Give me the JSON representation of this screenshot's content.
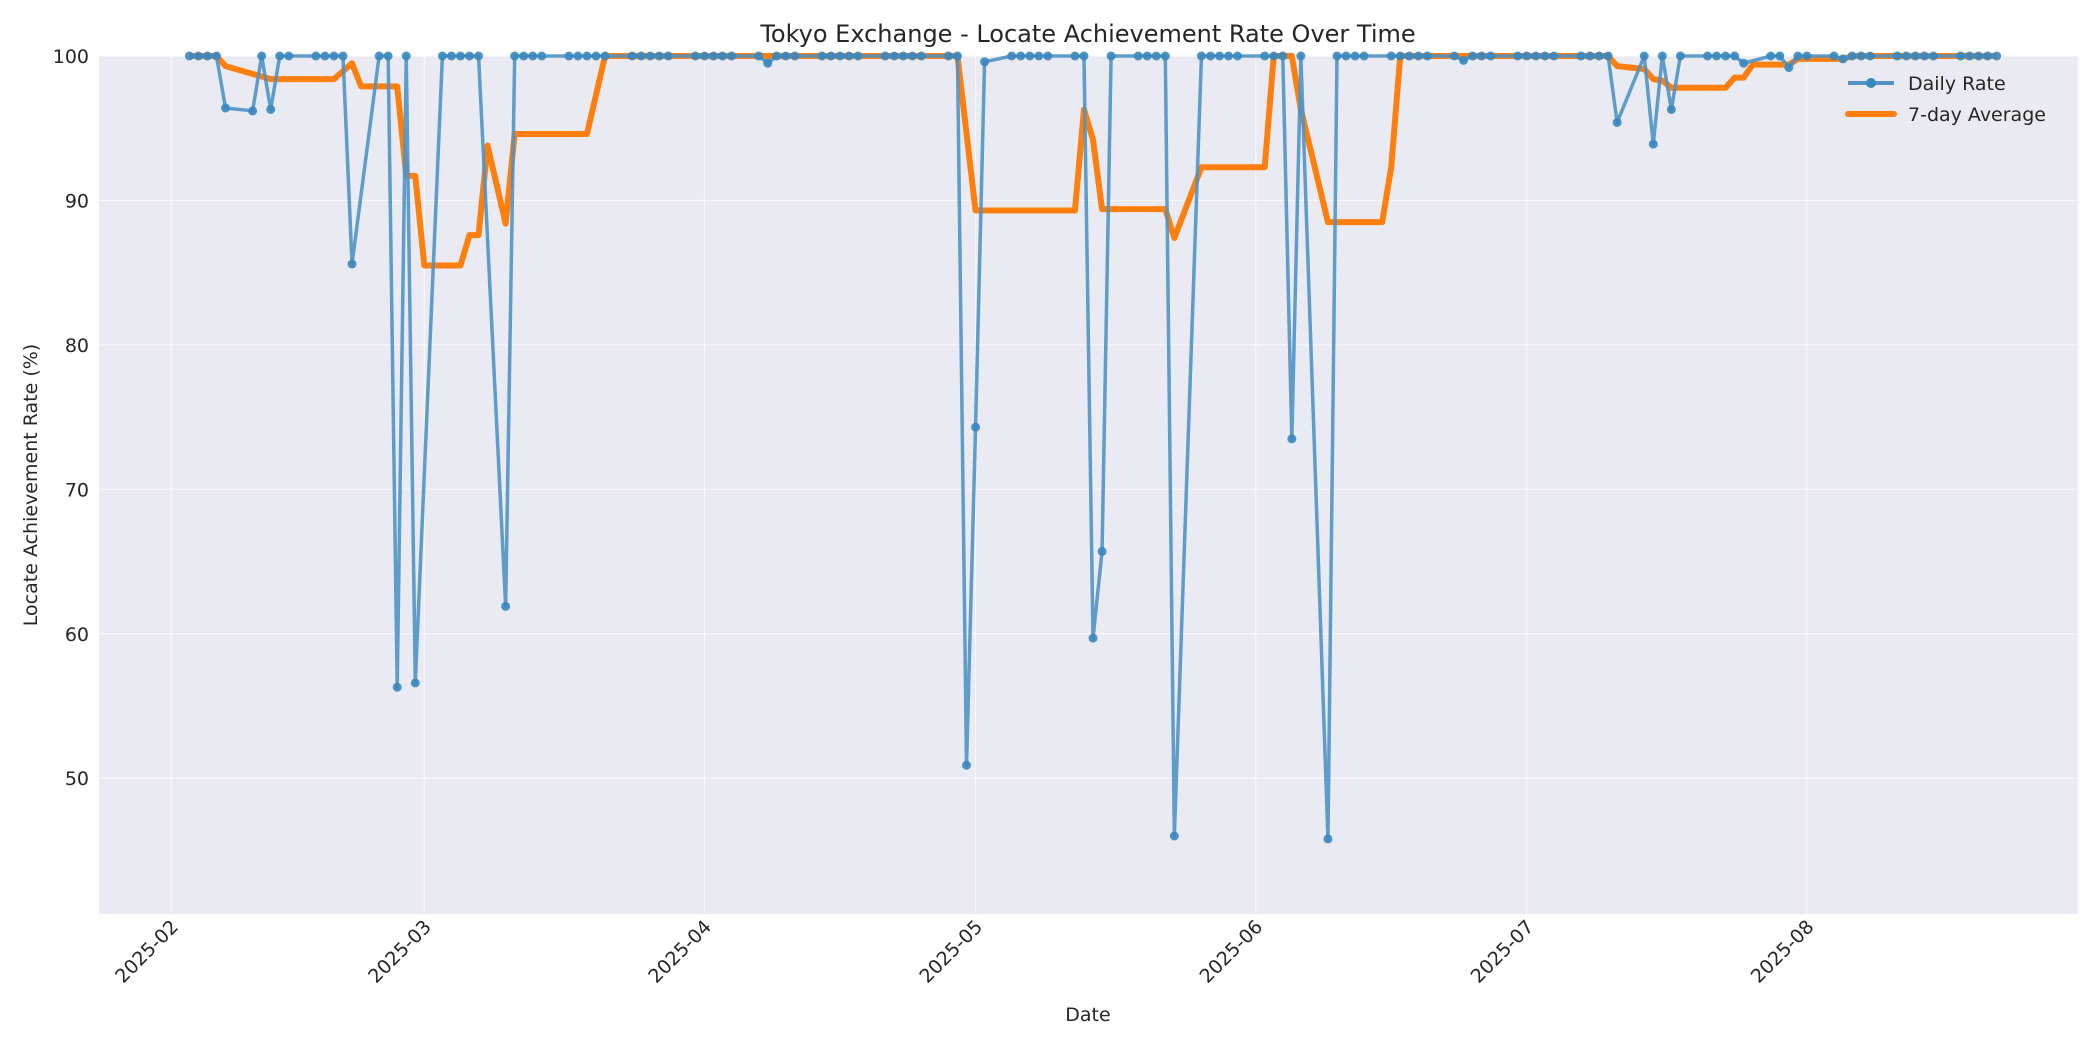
{
  "chart_data": {
    "type": "line",
    "title": "Tokyo Exchange - Locate Achievement Rate Over Time",
    "xlabel": "Date",
    "ylabel": "Locate Achievement Rate (%)",
    "xlim": [
      "2025-01-24",
      "2025-08-31"
    ],
    "ylim": [
      40.6,
      100
    ],
    "yticks": [
      50,
      60,
      70,
      80,
      90,
      100
    ],
    "xticks": [
      "2025-02",
      "2025-03",
      "2025-04",
      "2025-05",
      "2025-06",
      "2025-07",
      "2025-08"
    ],
    "xtick_dates": [
      "2025-02-01",
      "2025-03-01",
      "2025-04-01",
      "2025-05-01",
      "2025-06-01",
      "2025-07-01",
      "2025-08-01"
    ],
    "grid": true,
    "legend_position": "upper right",
    "background": "#eaeaf2",
    "daily_default_value": 100,
    "series": [
      {
        "name": "Daily Rate",
        "color": "#4f94c5",
        "marker": "circle",
        "start": "2025-02-03",
        "end": "2025-08-22",
        "frequency": "business-days",
        "exceptions": {
          "2025-02-07": 96.4,
          "2025-02-10": 96.2,
          "2025-02-12": 96.3,
          "2025-02-21": 85.6,
          "2025-02-26": 56.3,
          "2025-02-28": 56.6,
          "2025-03-10": 61.9,
          "2025-04-08": 99.5,
          "2025-04-30": 50.9,
          "2025-05-01": 74.3,
          "2025-05-02": 99.6,
          "2025-05-14": 59.7,
          "2025-05-15": 65.7,
          "2025-05-23": 46.0,
          "2025-06-05": 73.5,
          "2025-06-09": 45.8,
          "2025-06-24": 99.7,
          "2025-07-11": 95.4,
          "2025-07-15": 93.9,
          "2025-07-17": 96.3,
          "2025-07-25": 99.5,
          "2025-07-30": 99.2,
          "2025-08-05": 99.8
        }
      },
      {
        "name": "7-day Average",
        "color": "#ff7f0e",
        "points": [
          [
            "2025-02-03",
            100
          ],
          [
            "2025-02-06",
            100
          ],
          [
            "2025-02-07",
            99.3
          ],
          [
            "2025-02-12",
            98.4
          ],
          [
            "2025-02-19",
            98.4
          ],
          [
            "2025-02-21",
            99.5
          ],
          [
            "2025-02-22",
            97.9
          ],
          [
            "2025-02-26",
            97.9
          ],
          [
            "2025-02-27",
            91.7
          ],
          [
            "2025-02-28",
            91.7
          ],
          [
            "2025-03-01",
            85.5
          ],
          [
            "2025-03-05",
            85.5
          ],
          [
            "2025-03-06",
            87.6
          ],
          [
            "2025-03-07",
            87.6
          ],
          [
            "2025-03-08",
            93.8
          ],
          [
            "2025-03-10",
            88.4
          ],
          [
            "2025-03-11",
            94.6
          ],
          [
            "2025-03-19",
            94.6
          ],
          [
            "2025-03-21",
            100
          ],
          [
            "2025-04-29",
            100
          ],
          [
            "2025-05-01",
            89.3
          ],
          [
            "2025-05-12",
            89.3
          ],
          [
            "2025-05-13",
            96.3
          ],
          [
            "2025-05-14",
            94.2
          ],
          [
            "2025-05-15",
            89.4
          ],
          [
            "2025-05-22",
            89.4
          ],
          [
            "2025-05-23",
            87.4
          ],
          [
            "2025-05-26",
            92.3
          ],
          [
            "2025-06-02",
            92.3
          ],
          [
            "2025-06-03",
            100
          ],
          [
            "2025-06-05",
            100
          ],
          [
            "2025-06-06",
            96.3
          ],
          [
            "2025-06-09",
            88.5
          ],
          [
            "2025-06-15",
            88.5
          ],
          [
            "2025-06-16",
            92.3
          ],
          [
            "2025-06-17",
            100
          ],
          [
            "2025-07-10",
            100
          ],
          [
            "2025-07-11",
            99.3
          ],
          [
            "2025-07-14",
            99.1
          ],
          [
            "2025-07-15",
            98.4
          ],
          [
            "2025-07-16",
            98.3
          ],
          [
            "2025-07-17",
            97.8
          ],
          [
            "2025-07-23",
            97.8
          ],
          [
            "2025-07-24",
            98.5
          ],
          [
            "2025-07-25",
            98.5
          ],
          [
            "2025-07-26",
            99.4
          ],
          [
            "2025-07-30",
            99.4
          ],
          [
            "2025-07-31",
            99.8
          ],
          [
            "2025-08-05",
            99.8
          ],
          [
            "2025-08-06",
            100
          ],
          [
            "2025-08-22",
            100
          ]
        ]
      }
    ]
  },
  "legend": {
    "items": [
      {
        "label": "Daily Rate"
      },
      {
        "label": "7-day Average"
      }
    ]
  }
}
